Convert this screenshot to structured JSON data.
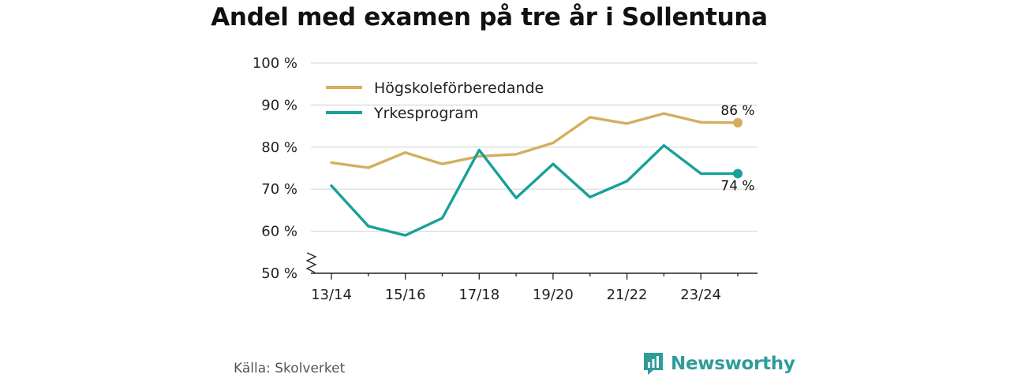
{
  "title": "Andel med examen på tre år i Sollentuna",
  "source": "Källa: Skolverket",
  "brand": {
    "name": "Newsworthy",
    "icon": "newsworthy-logo-icon"
  },
  "colors": {
    "hogskole": "#d4ae5d",
    "yrkes": "#17a198",
    "grid": "#d9d9d9",
    "axis": "#222222",
    "brand": "#2f9c98"
  },
  "chart_data": {
    "type": "line",
    "x": [
      "13/14",
      "14/15",
      "15/16",
      "16/17",
      "17/18",
      "18/19",
      "19/20",
      "20/21",
      "21/22",
      "22/23",
      "23/24",
      "24/25"
    ],
    "xticks": [
      "13/14",
      "15/16",
      "17/18",
      "19/20",
      "21/22",
      "23/24"
    ],
    "yticks": [
      "50 %",
      "60 %",
      "70 %",
      "80 %",
      "90 %",
      "100 %"
    ],
    "ylim": [
      50,
      100
    ],
    "axis_break": true,
    "grid": true,
    "legend_position": "top-left",
    "series": [
      {
        "name": "Högskoleförberedande",
        "color": "#d4ae5d",
        "values": [
          76.3,
          75.1,
          78.7,
          76.0,
          77.8,
          78.3,
          81.0,
          87.1,
          85.6,
          88.0,
          85.9,
          85.8
        ],
        "end_label": "86 %"
      },
      {
        "name": "Yrkesprogram",
        "color": "#17a198",
        "values": [
          70.8,
          61.2,
          59.0,
          63.1,
          79.3,
          67.9,
          76.0,
          68.1,
          71.9,
          80.4,
          73.7,
          73.7
        ],
        "end_label": "74 %"
      }
    ]
  }
}
